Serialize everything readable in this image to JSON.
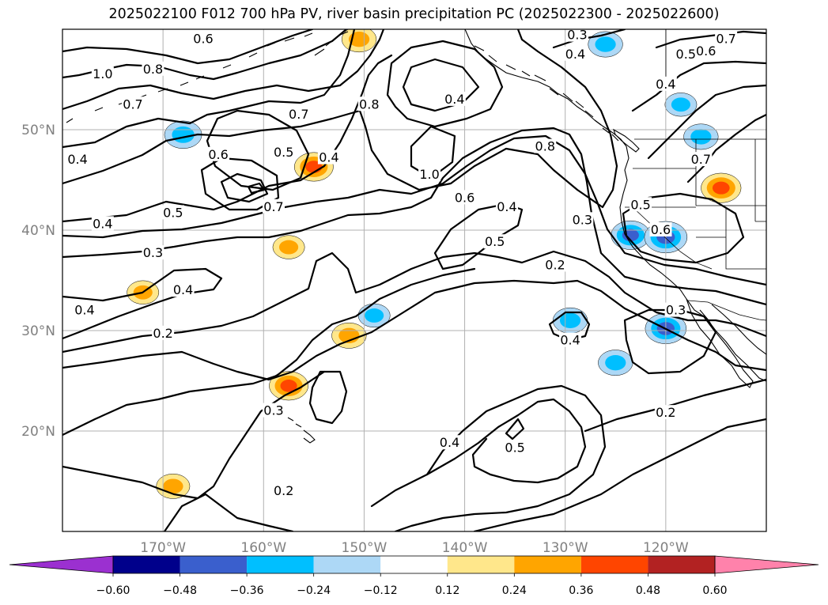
{
  "title": "2025022100 F012 700 hPa PV, river basin precipitation PC (2025022300 - 2025022600)",
  "map": {
    "lon_range": [
      -180,
      -110
    ],
    "lat_range": [
      10,
      60
    ],
    "lon_ticks": [
      {
        "lon": -170,
        "label": "170°W"
      },
      {
        "lon": -160,
        "label": "160°W"
      },
      {
        "lon": -150,
        "label": "150°W"
      },
      {
        "lon": -140,
        "label": "140°W"
      },
      {
        "lon": -130,
        "label": "130°W"
      },
      {
        "lon": -120,
        "label": "120°W"
      }
    ],
    "lat_ticks": [
      {
        "lat": 50,
        "label": "50°N"
      },
      {
        "lat": 40,
        "label": "40°N"
      },
      {
        "lat": 30,
        "label": "30°N"
      },
      {
        "lat": 20,
        "label": "20°N"
      }
    ]
  },
  "contour_labels": [
    {
      "text": "0.6",
      "lon": -166.0,
      "lat": 59.0
    },
    {
      "text": "0.8",
      "lon": -171.0,
      "lat": 56.0
    },
    {
      "text": "1.0",
      "lon": -176.0,
      "lat": 55.5
    },
    {
      "text": "0.7",
      "lon": -173.0,
      "lat": 52.5
    },
    {
      "text": "0.4",
      "lon": -178.5,
      "lat": 47.0
    },
    {
      "text": "0.7",
      "lon": -156.5,
      "lat": 51.5
    },
    {
      "text": "0.8",
      "lon": -149.5,
      "lat": 52.5
    },
    {
      "text": "0.4",
      "lon": -141.0,
      "lat": 53.0
    },
    {
      "text": "0.4",
      "lon": -129.0,
      "lat": 57.5
    },
    {
      "text": "0.3",
      "lon": -128.8,
      "lat": 59.4
    },
    {
      "text": "0.6",
      "lon": -164.5,
      "lat": 47.5
    },
    {
      "text": "0.5",
      "lon": -158.0,
      "lat": 47.7
    },
    {
      "text": "0.4",
      "lon": -153.5,
      "lat": 47.2
    },
    {
      "text": "1.0",
      "lon": -143.5,
      "lat": 45.5
    },
    {
      "text": "0.8",
      "lon": -132.0,
      "lat": 48.3
    },
    {
      "text": "0.6",
      "lon": -140.0,
      "lat": 43.2
    },
    {
      "text": "0.4",
      "lon": -135.8,
      "lat": 42.3
    },
    {
      "text": "0.5",
      "lon": -169.0,
      "lat": 41.7
    },
    {
      "text": "0.7",
      "lon": -159.0,
      "lat": 42.3
    },
    {
      "text": "0.4",
      "lon": -176.0,
      "lat": 40.6
    },
    {
      "text": "0.3",
      "lon": -171.0,
      "lat": 37.7
    },
    {
      "text": "0.5",
      "lon": -137.0,
      "lat": 38.8
    },
    {
      "text": "0.3",
      "lon": -128.3,
      "lat": 41.0
    },
    {
      "text": "0.2",
      "lon": -131.0,
      "lat": 36.5
    },
    {
      "text": "0.4",
      "lon": -168.0,
      "lat": 34.0
    },
    {
      "text": "0.4",
      "lon": -177.8,
      "lat": 32.0
    },
    {
      "text": "0.2",
      "lon": -170.0,
      "lat": 29.7
    },
    {
      "text": "0.5",
      "lon": -122.5,
      "lat": 42.5
    },
    {
      "text": "0.6",
      "lon": -120.5,
      "lat": 40.0
    },
    {
      "text": "0.7",
      "lon": -116.5,
      "lat": 47.0
    },
    {
      "text": "0.4",
      "lon": -120.0,
      "lat": 54.5
    },
    {
      "text": "0.5",
      "lon": -118.0,
      "lat": 57.5
    },
    {
      "text": "0.6",
      "lon": -116.0,
      "lat": 57.8
    },
    {
      "text": "0.7",
      "lon": -114.0,
      "lat": 59.0
    },
    {
      "text": "0.3",
      "lon": -119.0,
      "lat": 32.0
    },
    {
      "text": "0.4",
      "lon": -129.5,
      "lat": 29.0
    },
    {
      "text": "0.3",
      "lon": -159.0,
      "lat": 22.0
    },
    {
      "text": "0.4",
      "lon": -141.5,
      "lat": 18.8
    },
    {
      "text": "0.5",
      "lon": -135.0,
      "lat": 18.3
    },
    {
      "text": "0.2",
      "lon": -120.0,
      "lat": 21.8
    },
    {
      "text": "0.2",
      "lon": -158.0,
      "lat": 14.0
    }
  ],
  "precip_pc_areas": [
    {
      "lon": -157.5,
      "lat": 24.5,
      "value": 0.38
    },
    {
      "lon": -151.5,
      "lat": 29.5,
      "value": 0.3
    },
    {
      "lon": -155.0,
      "lat": 46.3,
      "value": 0.38
    },
    {
      "lon": -150.5,
      "lat": 59.0,
      "value": 0.3
    },
    {
      "lon": -114.5,
      "lat": 44.2,
      "value": 0.4
    },
    {
      "lon": -169.0,
      "lat": 14.5,
      "value": 0.28
    },
    {
      "lon": -157.5,
      "lat": 38.3,
      "value": 0.25
    },
    {
      "lon": -172.0,
      "lat": 33.8,
      "value": 0.25
    },
    {
      "lon": -123.5,
      "lat": 39.5,
      "value": -0.38
    },
    {
      "lon": -120.0,
      "lat": 39.3,
      "value": -0.45
    },
    {
      "lon": -120.0,
      "lat": 30.2,
      "value": -0.42
    },
    {
      "lon": -125.0,
      "lat": 26.8,
      "value": -0.3
    },
    {
      "lon": -129.5,
      "lat": 31.0,
      "value": -0.3
    },
    {
      "lon": -126.0,
      "lat": 58.5,
      "value": -0.3
    },
    {
      "lon": -168.0,
      "lat": 49.5,
      "value": -0.35
    },
    {
      "lon": -118.5,
      "lat": 52.5,
      "value": -0.25
    },
    {
      "lon": -116.5,
      "lat": 49.3,
      "value": -0.3
    },
    {
      "lon": -149.0,
      "lat": 31.5,
      "value": -0.25
    }
  ],
  "colorbar": {
    "colors": [
      "#9b30d0",
      "#00008b",
      "#3a5fcd",
      "#00bfff",
      "#add8f6",
      "#ffffff",
      "#ffe78b",
      "#ffa500",
      "#ff4500",
      "#b22222",
      "#ff82ab"
    ],
    "ticks": [
      "−0.60",
      "−0.48",
      "−0.36",
      "−0.24",
      "−0.12",
      "0.12",
      "0.24",
      "0.36",
      "0.48",
      "0.60"
    ]
  }
}
